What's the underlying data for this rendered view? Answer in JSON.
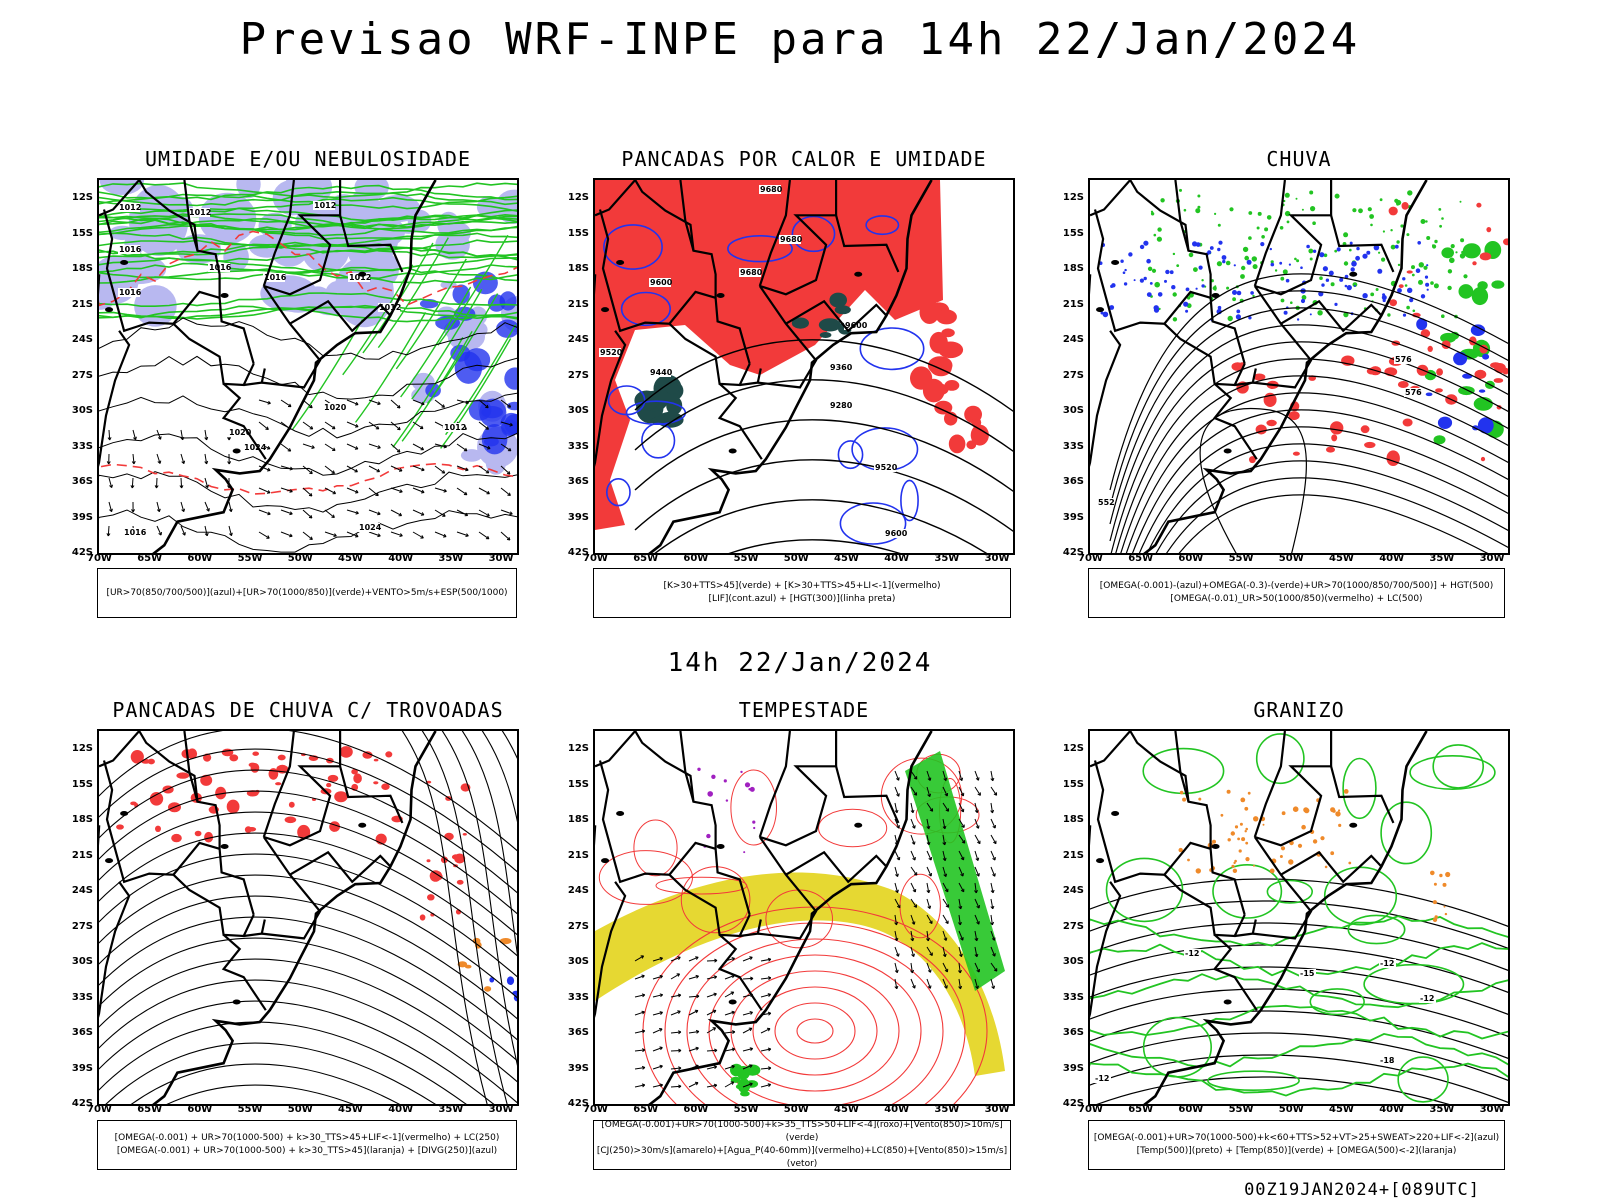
{
  "header": {
    "title": "Previsao WRF-INPE  para 14h 22/Jan/2024"
  },
  "mid_date": "14h 22/Jan/2024",
  "footer": {
    "run": "00Z19JAN2024+[089UTC]"
  },
  "axes": {
    "lat_labels": [
      "12S",
      "15S",
      "18S",
      "21S",
      "24S",
      "27S",
      "30S",
      "33S",
      "36S",
      "39S",
      "42S"
    ],
    "lon_labels": [
      "70W",
      "65W",
      "60W",
      "55W",
      "50W",
      "45W",
      "40W",
      "35W",
      "30W"
    ]
  },
  "panels": [
    {
      "id": "umidade",
      "title": "UMIDADE E/OU NEBULOSIDADE",
      "legend": [
        "[UR>70(850/700/500)](azul)+[UR>70(1000/850)](verde)+VENTO>5m/s+ESP(500/1000)"
      ],
      "contour_labels": [
        "1012",
        "1012",
        "1012",
        "1016",
        "1012",
        "1016",
        "1016",
        "1012",
        "1016",
        "1020",
        "1020",
        "1024",
        "1024",
        "1016",
        "1012"
      ]
    },
    {
      "id": "pancadas-calor",
      "title": "PANCADAS POR CALOR E UMIDADE",
      "legend": [
        "[K>30+TTS>45](verde) + [K>30+TTS>45+LI<-1](vermelho)",
        "[LIF](cont.azul) + [HGT(300)](linha preta)"
      ],
      "contour_labels": [
        "9680",
        "9680",
        "9680",
        "9600",
        "9600",
        "9520",
        "9440",
        "9360",
        "9280",
        "9520",
        "9600"
      ]
    },
    {
      "id": "chuva",
      "title": "CHUVA",
      "legend": [
        "[OMEGA(-0.001)-(azul)+OMEGA(-0.3)-(verde)+UR>70(1000/850/700/500)] + HGT(500)",
        "[OMEGA(-0.01)_UR>50(1000/850)(vermelho) + LC(500)"
      ],
      "contour_labels": [
        "576",
        "576",
        "552"
      ]
    },
    {
      "id": "trovoadas",
      "title": "PANCADAS DE CHUVA C/ TROVOADAS",
      "legend": [
        "[OMEGA(-0.001) + UR>70(1000-500) + k>30_TTS>45+LIF<-1](vermelho) + LC(250)",
        "[OMEGA(-0.001) + UR>70(1000-500) + k>30_TTS>45](laranja) + [DIVG(250)](azul)"
      ],
      "contour_labels": []
    },
    {
      "id": "tempestade",
      "title": "TEMPESTADE",
      "legend": [
        "[OMEGA(-0.001)+UR>70(1000-500)+k>35_TTS>50+LIF<-4](roxo)+[Vento(850)>10m/s](verde)",
        "[CJ(250)>30m/s](amarelo)+[Agua_P(40-60mm)](vermelho)+LC(850)+[Vento(850)>15m/s](vetor)"
      ],
      "contour_labels": []
    },
    {
      "id": "granizo",
      "title": "GRANIZO",
      "legend": [
        "[OMEGA(-0.001)+UR>70(1000-500)+k<60+TTS>52+VT>25+SWEAT>220+LIF<-2](azul)",
        "[Temp(500)](preto) + [Temp(850)](verde) + [OMEGA(500)<-2](laranja)"
      ],
      "contour_labels": [
        "-12",
        "-12",
        "-15",
        "-12",
        "-18",
        "-12"
      ]
    }
  ],
  "chart_data": [
    {
      "type": "map",
      "title": "UMIDADE E/OU NEBULOSIDADE",
      "lon_range": [
        -70,
        -28
      ],
      "lat_range": [
        -42,
        -10
      ],
      "fields": [
        "UR>70 850/700/500 (azul)",
        "UR>70 1000/850 (verde)",
        "VENTO>5m/s",
        "ESP 500/1000"
      ]
    },
    {
      "type": "map",
      "title": "PANCADAS POR CALOR E UMIDADE",
      "lon_range": [
        -70,
        -28
      ],
      "lat_range": [
        -42,
        -10
      ],
      "fields": [
        "K>30+TTS>45 (verde)",
        "K>30+TTS>45+LI<-1 (vermelho)",
        "LIF (azul)",
        "HGT 300 (preta)"
      ]
    },
    {
      "type": "map",
      "title": "CHUVA",
      "lon_range": [
        -70,
        -28
      ],
      "lat_range": [
        -42,
        -10
      ],
      "fields": [
        "OMEGA azul",
        "OMEGA verde",
        "vermelho",
        "HGT 500",
        "LC 500"
      ]
    },
    {
      "type": "map",
      "title": "PANCADAS DE CHUVA C/ TROVOADAS",
      "lon_range": [
        -70,
        -28
      ],
      "lat_range": [
        -42,
        -10
      ],
      "fields": [
        "vermelho",
        "laranja",
        "DIVG 250 azul",
        "LC 250"
      ]
    },
    {
      "type": "map",
      "title": "TEMPESTADE",
      "lon_range": [
        -70,
        -28
      ],
      "lat_range": [
        -42,
        -10
      ],
      "fields": [
        "roxo",
        "Vento 850 verde",
        "CJ 250 amarelo",
        "Agua_P vermelho",
        "LC 850",
        "Vento 850 vetor"
      ]
    },
    {
      "type": "map",
      "title": "GRANIZO",
      "lon_range": [
        -70,
        -28
      ],
      "lat_range": [
        -42,
        -10
      ],
      "fields": [
        "azul",
        "Temp 500 preto",
        "Temp 850 verde",
        "OMEGA 500 laranja"
      ]
    }
  ],
  "colors": {
    "red": "#f23a3a",
    "green": "#22c422",
    "blue": "#2233ee",
    "lavender": "#b8b8f0",
    "darkteal": "#1f4a48",
    "yellow": "#e6d832",
    "orange": "#ef8a2a",
    "black": "#000000"
  }
}
